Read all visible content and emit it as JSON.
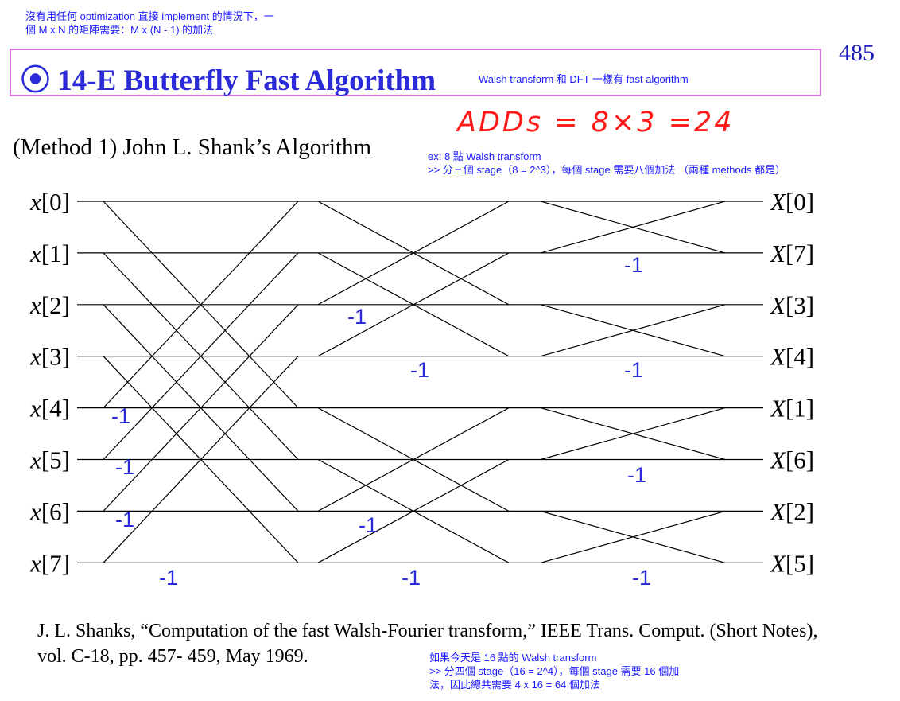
{
  "header": {
    "note_line1": "沒有用任何 optimization 直接 implement 的情況下，一",
    "note_line2": "個 M x N 的矩陣需要：M x (N - 1) 的加法",
    "page_number": "485"
  },
  "title": {
    "text": "⦿ 14-E  Butterfly Fast Algorithm",
    "note": "Walsh transform 和 DFT 一樣有 fast algorithm"
  },
  "handwritten": "ADDs = 8×3 =24",
  "method": {
    "text": "(Method 1) John L. Shank’s Algorithm",
    "note_line1": "ex: 8 點 Walsh transform",
    "note_line2": ">> 分三個 stage（8 = 2^3），每個 stage 需要八個加法 （兩種 methods 都是）"
  },
  "diagram": {
    "inputs": [
      "x[0]",
      "x[1]",
      "x[2]",
      "x[3]",
      "x[4]",
      "x[5]",
      "x[6]",
      "x[7]"
    ],
    "outputs": [
      "X[0]",
      "X[7]",
      "X[3]",
      "X[4]",
      "X[1]",
      "X[6]",
      "X[2]",
      "X[5]"
    ],
    "negation_label": "-1",
    "line_color": "#000000",
    "label_color": "#2a2ad8",
    "stages": [
      {
        "connections": [
          [
            0,
            4
          ],
          [
            1,
            5
          ],
          [
            2,
            6
          ],
          [
            3,
            7
          ],
          [
            4,
            0
          ],
          [
            5,
            1
          ],
          [
            6,
            2
          ],
          [
            7,
            3
          ]
        ],
        "negated_rows": [
          4,
          5,
          6,
          7
        ]
      },
      {
        "connections": [
          [
            0,
            2
          ],
          [
            1,
            3
          ],
          [
            2,
            0
          ],
          [
            3,
            1
          ],
          [
            4,
            6
          ],
          [
            5,
            7
          ],
          [
            6,
            4
          ],
          [
            7,
            5
          ]
        ],
        "negated_rows": [
          2,
          3,
          6,
          7
        ]
      },
      {
        "connections": [
          [
            0,
            1
          ],
          [
            1,
            0
          ],
          [
            2,
            3
          ],
          [
            3,
            2
          ],
          [
            4,
            5
          ],
          [
            5,
            4
          ],
          [
            6,
            7
          ],
          [
            7,
            6
          ]
        ],
        "negated_rows": [
          1,
          3,
          5,
          7
        ]
      }
    ]
  },
  "reference": "J. L. Shanks, “Computation of the fast Walsh-Fourier transform,” IEEE Trans. Comput. (Short Notes), vol. C-18, pp. 457- 459, May 1969.",
  "bottom_note": {
    "line1": "如果今天是 16 點的 Walsh transform",
    "line2": ">> 分四個 stage（16 = 2^4），每個 stage 需要 16 個加",
    "line3": "法，因此總共需要 4 x 16 = 64 個加法"
  }
}
